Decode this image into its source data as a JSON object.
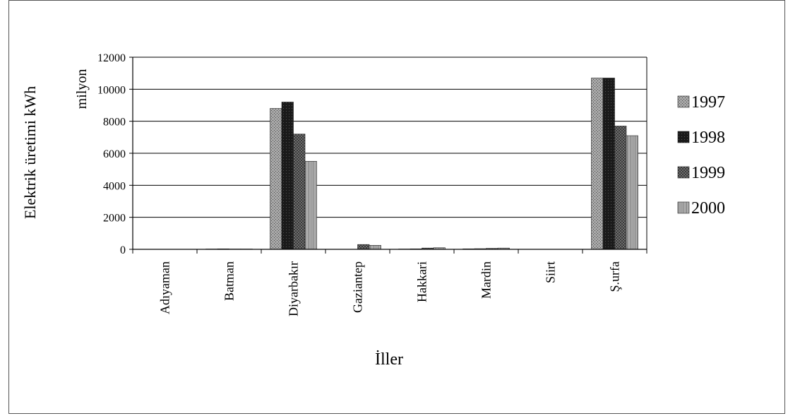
{
  "chart_data": {
    "type": "bar",
    "ylabel": "Elektrik üretimi  kWh",
    "ylabel_unit": "milyon",
    "xlabel": "İller",
    "ylim": [
      0,
      12000
    ],
    "yticks": [
      0,
      2000,
      4000,
      6000,
      8000,
      10000,
      12000
    ],
    "grid": true,
    "legend_position": "right",
    "categories": [
      "Adıyaman",
      "Batman",
      "Diyarbakır",
      "Gaziantep",
      "Hakkari",
      "Mardin",
      "Siirt",
      "Ş.urfa"
    ],
    "series": [
      {
        "name": "1997",
        "color": "#9a9a9a",
        "values": [
          0,
          20,
          8800,
          0,
          20,
          30,
          0,
          10700
        ]
      },
      {
        "name": "1998",
        "color": "#111111",
        "values": [
          0,
          30,
          9200,
          0,
          30,
          40,
          0,
          10700
        ]
      },
      {
        "name": "1999",
        "color": "#5a5a5a",
        "values": [
          0,
          20,
          7200,
          300,
          80,
          60,
          0,
          7700
        ]
      },
      {
        "name": "2000",
        "color": "#b5b5b5",
        "values": [
          0,
          20,
          5500,
          250,
          100,
          80,
          0,
          7100
        ]
      }
    ]
  }
}
